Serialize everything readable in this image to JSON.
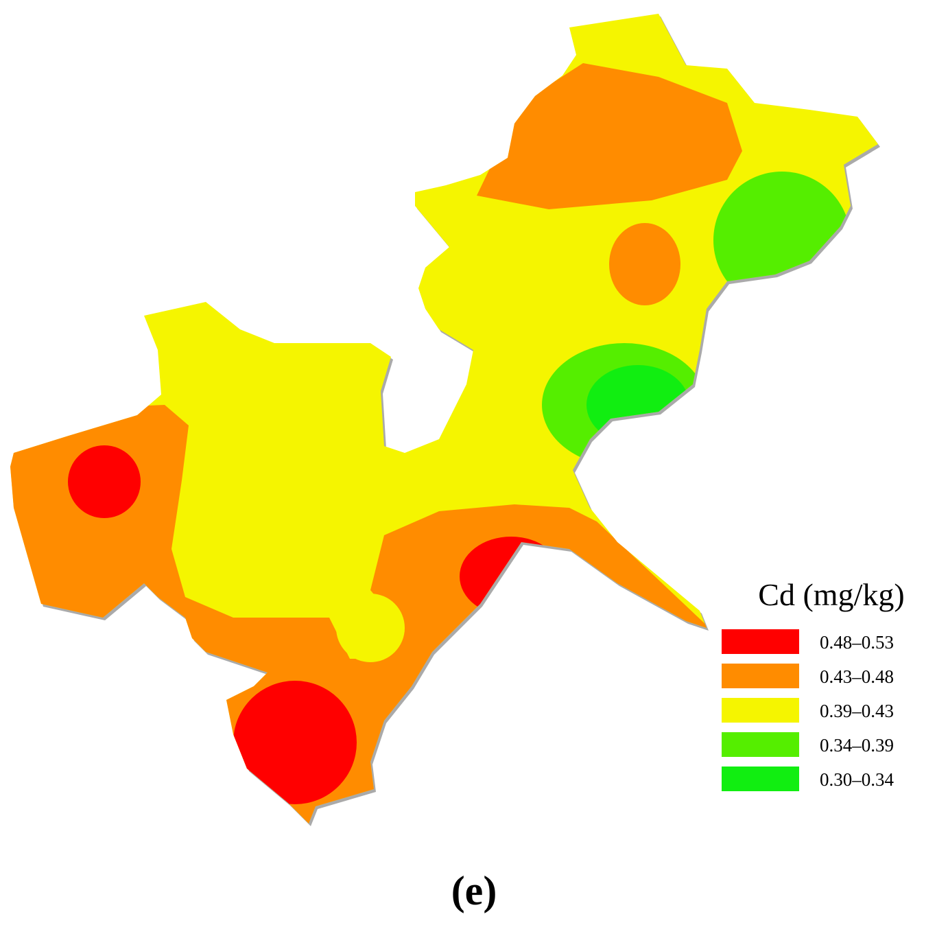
{
  "legend": {
    "title": "Cd (mg/kg)",
    "items": [
      {
        "label": "0.48–0.53",
        "color": "#ff0000"
      },
      {
        "label": "0.43–0.48",
        "color": "#ff8c00"
      },
      {
        "label": "0.39–0.43",
        "color": "#f5f500"
      },
      {
        "label": "0.34–0.39",
        "color": "#55ee00"
      },
      {
        "label": "0.30–0.34",
        "color": "#11ee11"
      }
    ]
  },
  "caption": "(e)"
}
